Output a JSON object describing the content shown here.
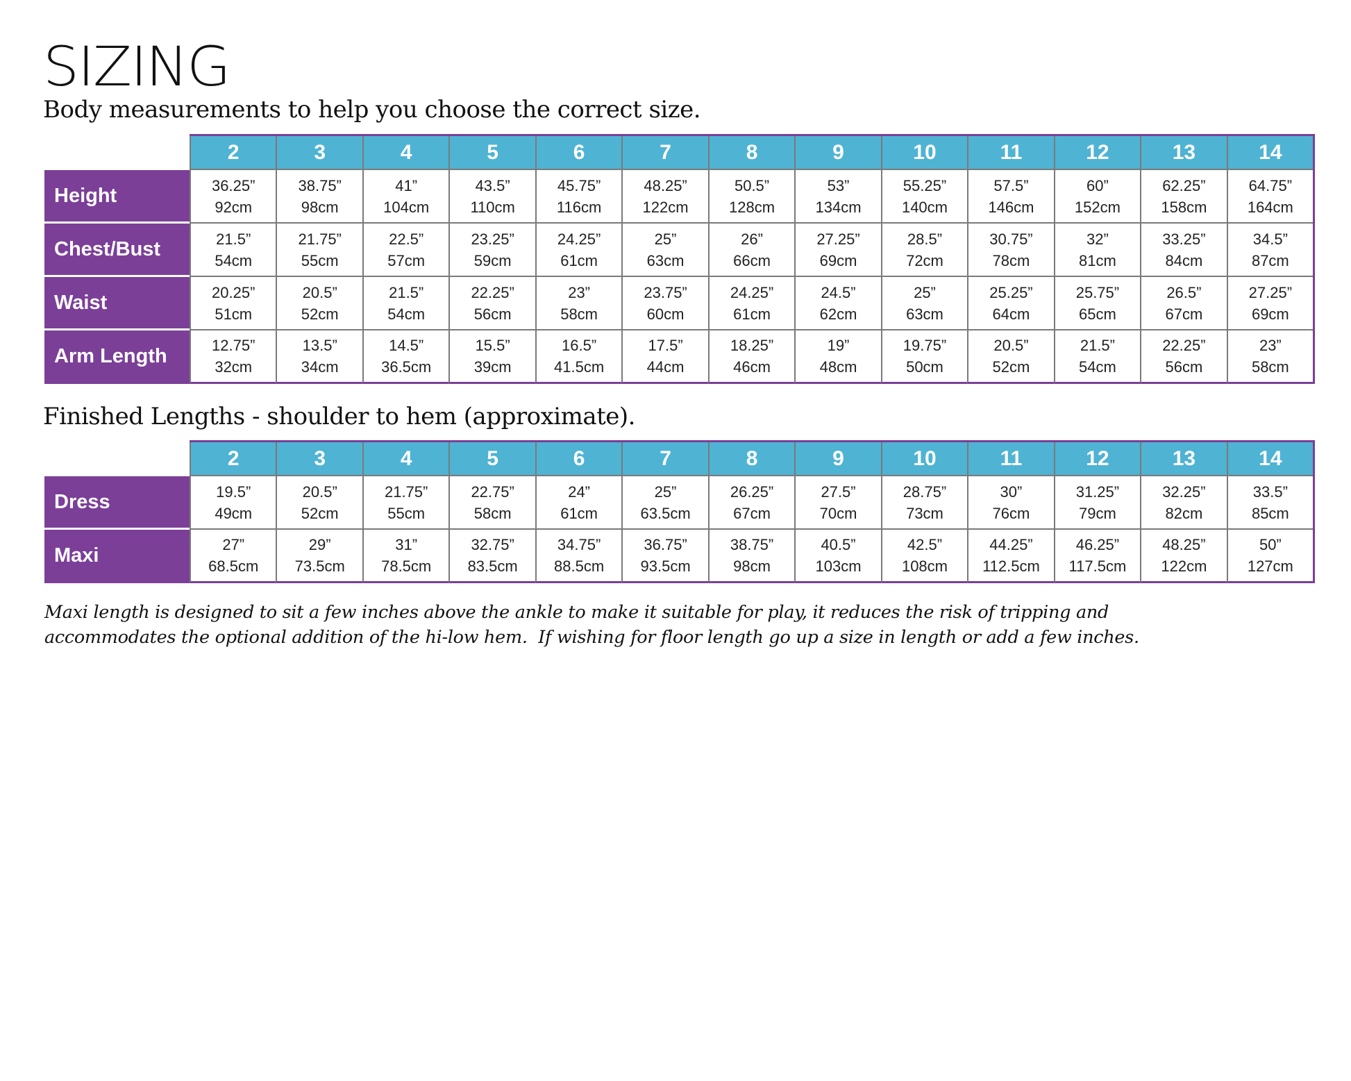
{
  "title": "SIZING",
  "colors": {
    "header_bg": "#4fb3d3",
    "label_bg": "#7b3f98",
    "grid": "#7a7a7a"
  },
  "body_measurements": {
    "caption": "Body measurements to help you choose the correct size.",
    "sizes": [
      "2",
      "3",
      "4",
      "5",
      "6",
      "7",
      "8",
      "9",
      "10",
      "11",
      "12",
      "13",
      "14"
    ],
    "rows": [
      {
        "label": "Height",
        "values": [
          [
            "36.25”",
            "92cm"
          ],
          [
            "38.75”",
            "98cm"
          ],
          [
            "41”",
            "104cm"
          ],
          [
            "43.5”",
            "110cm"
          ],
          [
            "45.75”",
            "116cm"
          ],
          [
            "48.25”",
            "122cm"
          ],
          [
            "50.5”",
            "128cm"
          ],
          [
            "53”",
            "134cm"
          ],
          [
            "55.25”",
            "140cm"
          ],
          [
            "57.5”",
            "146cm"
          ],
          [
            "60”",
            "152cm"
          ],
          [
            "62.25”",
            "158cm"
          ],
          [
            "64.75”",
            "164cm"
          ]
        ]
      },
      {
        "label": "Chest/Bust",
        "values": [
          [
            "21.5”",
            "54cm"
          ],
          [
            "21.75”",
            "55cm"
          ],
          [
            "22.5”",
            "57cm"
          ],
          [
            "23.25”",
            "59cm"
          ],
          [
            "24.25”",
            "61cm"
          ],
          [
            "25”",
            "63cm"
          ],
          [
            "26”",
            "66cm"
          ],
          [
            "27.25”",
            "69cm"
          ],
          [
            "28.5”",
            "72cm"
          ],
          [
            "30.75”",
            "78cm"
          ],
          [
            "32”",
            "81cm"
          ],
          [
            "33.25”",
            "84cm"
          ],
          [
            "34.5”",
            "87cm"
          ]
        ]
      },
      {
        "label": "Waist",
        "values": [
          [
            "20.25”",
            "51cm"
          ],
          [
            "20.5”",
            "52cm"
          ],
          [
            "21.5”",
            "54cm"
          ],
          [
            "22.25”",
            "56cm"
          ],
          [
            "23”",
            "58cm"
          ],
          [
            "23.75”",
            "60cm"
          ],
          [
            "24.25”",
            "61cm"
          ],
          [
            "24.5”",
            "62cm"
          ],
          [
            "25”",
            "63cm"
          ],
          [
            "25.25”",
            "64cm"
          ],
          [
            "25.75”",
            "65cm"
          ],
          [
            "26.5”",
            "67cm"
          ],
          [
            "27.25”",
            "69cm"
          ]
        ]
      },
      {
        "label": "Arm Length",
        "values": [
          [
            "12.75”",
            "32cm"
          ],
          [
            "13.5”",
            "34cm"
          ],
          [
            "14.5”",
            "36.5cm"
          ],
          [
            "15.5”",
            "39cm"
          ],
          [
            "16.5”",
            "41.5cm"
          ],
          [
            "17.5”",
            "44cm"
          ],
          [
            "18.25”",
            "46cm"
          ],
          [
            "19”",
            "48cm"
          ],
          [
            "19.75”",
            "50cm"
          ],
          [
            "20.5”",
            "52cm"
          ],
          [
            "21.5”",
            "54cm"
          ],
          [
            "22.25”",
            "56cm"
          ],
          [
            "23”",
            "58cm"
          ]
        ]
      }
    ]
  },
  "finished_lengths": {
    "caption": "Finished Lengths - shoulder to hem (approximate).",
    "sizes": [
      "2",
      "3",
      "4",
      "5",
      "6",
      "7",
      "8",
      "9",
      "10",
      "11",
      "12",
      "13",
      "14"
    ],
    "rows": [
      {
        "label": "Dress",
        "values": [
          [
            "19.5”",
            "49cm"
          ],
          [
            "20.5”",
            "52cm"
          ],
          [
            "21.75”",
            "55cm"
          ],
          [
            "22.75”",
            "58cm"
          ],
          [
            "24”",
            "61cm"
          ],
          [
            "25”",
            "63.5cm"
          ],
          [
            "26.25”",
            "67cm"
          ],
          [
            "27.5”",
            "70cm"
          ],
          [
            "28.75”",
            "73cm"
          ],
          [
            "30”",
            "76cm"
          ],
          [
            "31.25”",
            "79cm"
          ],
          [
            "32.25”",
            "82cm"
          ],
          [
            "33.5”",
            "85cm"
          ]
        ]
      },
      {
        "label": "Maxi",
        "values": [
          [
            "27”",
            "68.5cm"
          ],
          [
            "29”",
            "73.5cm"
          ],
          [
            "31”",
            "78.5cm"
          ],
          [
            "32.75”",
            "83.5cm"
          ],
          [
            "34.75”",
            "88.5cm"
          ],
          [
            "36.75”",
            "93.5cm"
          ],
          [
            "38.75”",
            "98cm"
          ],
          [
            "40.5”",
            "103cm"
          ],
          [
            "42.5”",
            "108cm"
          ],
          [
            "44.25”",
            "112.5cm"
          ],
          [
            "46.25”",
            "117.5cm"
          ],
          [
            "48.25”",
            "122cm"
          ],
          [
            "50”",
            "127cm"
          ]
        ]
      }
    ]
  },
  "note": {
    "line1": "Maxi length is designed to sit a few inches above the ankle to make it suitable for play, it reduces the risk of tripping and",
    "line2": "accommodates the optional addition of the hi-low hem.  If wishing for floor length go up a size in length or add a few inches."
  }
}
